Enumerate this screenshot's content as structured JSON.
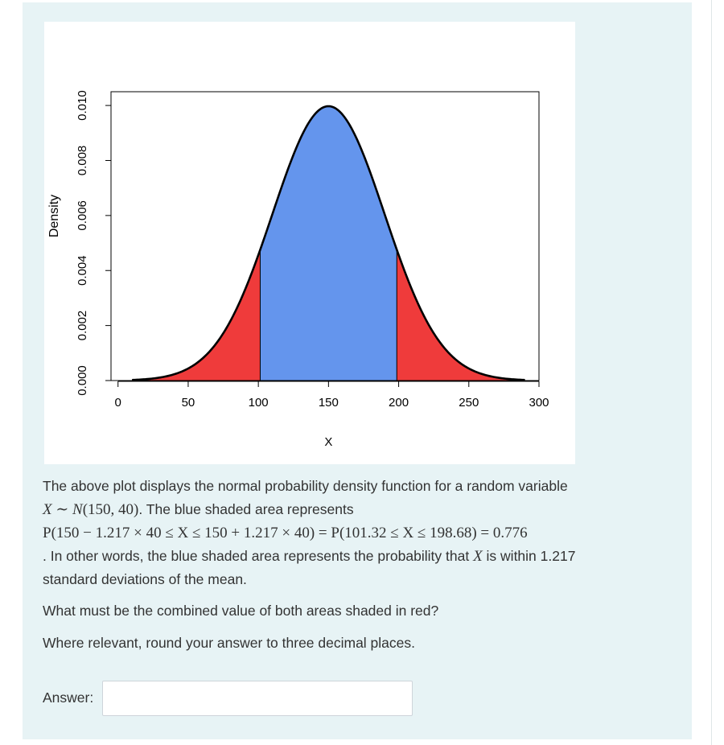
{
  "chart_data": {
    "type": "area",
    "distribution": {
      "family": "normal",
      "mean": 150,
      "sd": 40
    },
    "x_range": [
      10,
      290
    ],
    "xlabel": "X",
    "ylabel": "Density",
    "xticks": [
      0,
      50,
      100,
      150,
      200,
      250,
      300
    ],
    "xtick_labels": [
      "0",
      "50",
      "100",
      "150",
      "200",
      "250",
      "300"
    ],
    "yticks": [
      0,
      0.002,
      0.004,
      0.006,
      0.008,
      0.01
    ],
    "ytick_labels": [
      "0.000",
      "0.002",
      "0.004",
      "0.006",
      "0.008",
      "0.010"
    ],
    "xlim": [
      -5,
      300
    ],
    "ylim": [
      0,
      0.0105
    ],
    "regions": [
      {
        "from": 10,
        "to": 101.32,
        "color": "#ef3b3b"
      },
      {
        "from": 101.32,
        "to": 198.68,
        "color": "#6495ed"
      },
      {
        "from": 198.68,
        "to": 290,
        "color": "#ef3b3b"
      }
    ],
    "baseline": 0,
    "curve_color": "#000000"
  },
  "question": {
    "line1": "The above plot displays the normal probability density function for a random variable",
    "dist_x": "X",
    "dist_tilde": "∼",
    "dist_n": "N",
    "dist_params": "(150, 40)",
    "line2_suffix": ". The blue shaded area represents",
    "prob_expr": "P(150 − 1.217 × 40 ≤ X ≤ 150 + 1.217 × 40) = P(101.32 ≤ X ≤ 198.68) = 0.776",
    "line4_prefix": ". In other words, the blue shaded area represents the probability that",
    "line4_var": "X",
    "line4_suffix": "is within 1.217",
    "line5": "standard deviations of the mean.",
    "prompt": "What must be the combined value of both areas shaded in red?",
    "rounding": "Where relevant, round your answer to three decimal places."
  },
  "answer": {
    "label": "Answer:",
    "value": ""
  }
}
